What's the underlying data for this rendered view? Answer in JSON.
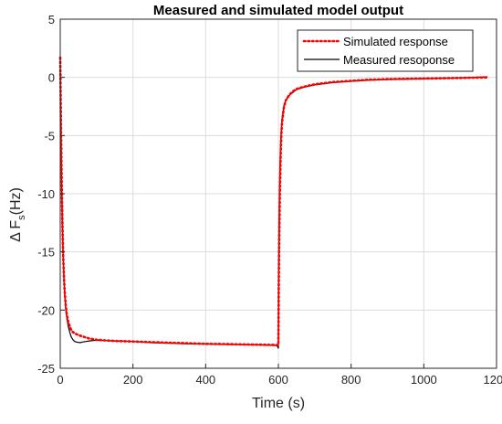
{
  "chart_data": {
    "type": "line",
    "title": "Measured and simulated model output",
    "xlabel": "Time (s)",
    "ylabel_prefix": "Δ F",
    "ylabel_sub": "s",
    "ylabel_suffix": "(Hz)",
    "xlim": [
      0,
      1200
    ],
    "ylim": [
      -25,
      5
    ],
    "xticks": [
      0,
      200,
      400,
      600,
      800,
      1000,
      1200
    ],
    "yticks": [
      5,
      0,
      -5,
      -10,
      -15,
      -20,
      -25
    ],
    "grid": true,
    "legend_position": "top-right",
    "series": [
      {
        "name": "Simulated response",
        "color": "#ff0000",
        "style": "dotted",
        "x": [
          0,
          2,
          4,
          6,
          8,
          10,
          12,
          15,
          18,
          22,
          26,
          30,
          35,
          40,
          50,
          60,
          70,
          80,
          100,
          120,
          150,
          200,
          250,
          300,
          350,
          400,
          450,
          500,
          550,
          595,
          597,
          599,
          600,
          601,
          602,
          604,
          606,
          608,
          610,
          615,
          620,
          630,
          640,
          650,
          670,
          700,
          750,
          800,
          850,
          900,
          1000,
          1100,
          1175
        ],
        "y": [
          1.7,
          -4.0,
          -9.0,
          -12.6,
          -15.2,
          -17.0,
          -18.3,
          -19.6,
          -20.4,
          -21.0,
          -21.4,
          -21.7,
          -21.9,
          -22.0,
          -22.15,
          -22.25,
          -22.35,
          -22.45,
          -22.55,
          -22.6,
          -22.65,
          -22.7,
          -22.75,
          -22.8,
          -22.85,
          -22.9,
          -22.92,
          -22.95,
          -22.97,
          -23.0,
          -23.0,
          -23.0,
          -23.0,
          -18.0,
          -14.5,
          -10.0,
          -7.0,
          -5.0,
          -3.9,
          -2.6,
          -2.0,
          -1.5,
          -1.2,
          -1.0,
          -0.8,
          -0.6,
          -0.4,
          -0.3,
          -0.2,
          -0.15,
          -0.1,
          -0.05,
          0.0
        ]
      },
      {
        "name": "Measured resoponse",
        "color": "#000000",
        "style": "solid",
        "x": [
          0,
          2,
          4,
          6,
          8,
          10,
          12,
          15,
          18,
          22,
          26,
          30,
          35,
          40,
          45,
          50,
          55,
          60,
          70,
          80,
          90,
          100,
          120,
          150,
          200,
          250,
          300,
          350,
          400,
          450,
          500,
          550,
          595,
          597,
          599,
          600,
          601,
          602,
          604,
          606,
          608,
          610,
          615,
          620,
          630,
          640,
          650,
          670,
          700,
          750,
          800,
          850,
          900,
          1000,
          1100,
          1175
        ],
        "y": [
          0.5,
          -5.0,
          -9.5,
          -13.0,
          -15.5,
          -17.2,
          -18.6,
          -19.9,
          -20.7,
          -21.4,
          -21.9,
          -22.3,
          -22.55,
          -22.7,
          -22.75,
          -22.78,
          -22.8,
          -22.75,
          -22.7,
          -22.65,
          -22.62,
          -22.6,
          -22.62,
          -22.65,
          -22.7,
          -22.8,
          -22.85,
          -22.9,
          -22.9,
          -22.95,
          -22.98,
          -23.0,
          -23.05,
          -23.1,
          -23.2,
          -23.3,
          -17.0,
          -12.5,
          -8.0,
          -5.8,
          -4.5,
          -3.6,
          -2.5,
          -2.0,
          -1.55,
          -1.3,
          -1.05,
          -0.85,
          -0.65,
          -0.45,
          -0.33,
          -0.25,
          -0.18,
          -0.12,
          -0.05,
          0.05
        ]
      }
    ]
  }
}
